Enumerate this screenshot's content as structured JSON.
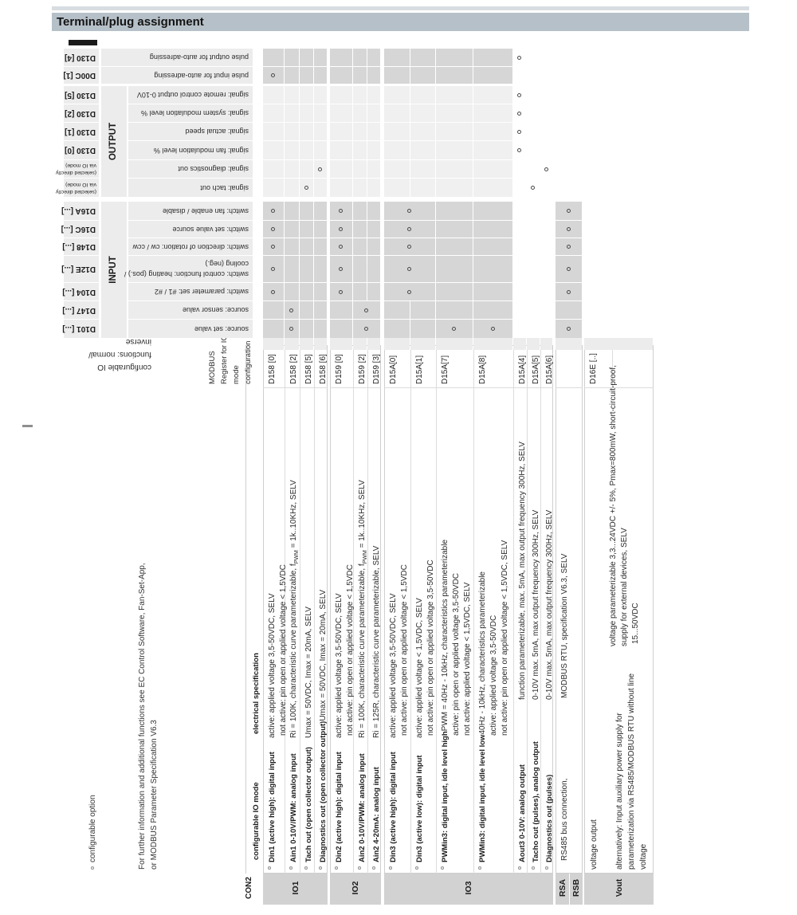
{
  "title": "Terminal/plug assignment",
  "footnotes": {
    "circle_note": "configurable  option",
    "info_line1": "For further information and additional functions see EC Control Software, Fan-Set-App,",
    "info_line2": "or MODBUS Parameter Specification V6.3"
  },
  "connector": "CON2",
  "headers": {
    "io_mode": "configurable IO mode",
    "spec": "electrical specification",
    "modbus_register_lines": [
      "MODBUS",
      "Register for IO",
      "mode",
      "configuration"
    ],
    "functions_lines": [
      "configurable IO",
      "functions: normal/",
      "inverse"
    ],
    "input": "INPUT",
    "output": "OUTPUT"
  },
  "groups": [
    {
      "label": "IO1",
      "first_row": 0,
      "last_row": 3
    },
    {
      "label": "IO2",
      "first_row": 4,
      "last_row": 6
    },
    {
      "label": "IO3",
      "first_row": 7,
      "last_row": 13
    },
    {
      "label": "RSA",
      "first_row": 14,
      "last_row": 14
    },
    {
      "label": "RSB",
      "first_row": 14,
      "last_row": 14
    },
    {
      "label": "Vout",
      "first_row": 15,
      "last_row": 15
    }
  ],
  "rows": [
    {
      "label": "Din1 (active high): digital input",
      "option": true,
      "bold": true,
      "register": "D158 [0]",
      "spec": [
        "active: applied voltage 3,5-50VDC, SELV",
        "not active: pin open or applied voltage < 1,5VDC"
      ]
    },
    {
      "label": "Ain1 0-10V/PWM: analog input",
      "option": true,
      "bold": true,
      "register": "D158 [2]",
      "spec": [
        "Ri = 100K, characteristic curve parameterizable, fPWM = 1k..10KHz, SELV"
      ]
    },
    {
      "label": "Tach out (open collector output)",
      "option": true,
      "bold": true,
      "register": "D158 [5]",
      "spec": [
        "Umax = 50VDC, Imax = 20mA, SELV"
      ]
    },
    {
      "label": "Diagnostics out (open collector output)",
      "option": true,
      "bold": true,
      "register": "D158 [6]",
      "spec": [
        "Umax = 50VDC, Imax = 20mA, SELV"
      ]
    },
    {
      "label": "Din2 (active high): digital input",
      "option": true,
      "bold": true,
      "register": "D159 [0]",
      "spec": [
        "active: applied voltage 3,5-50VDC, SELV",
        "not active: pin open or applied voltage < 1,5VDC"
      ]
    },
    {
      "label": "Ain2 0-10V/PWM: analog input",
      "option": true,
      "bold": true,
      "register": "D159 [2]",
      "spec": [
        "Ri = 100K, characteristic curve parameterizable, fPWM = 1k..10KHz, SELV"
      ]
    },
    {
      "label": "Ain2 4-20mA: analog input",
      "option": true,
      "bold": true,
      "register": "D159 [3]",
      "spec": [
        "Ri = 125R, characteristic curve parameterizable, SELV"
      ]
    },
    {
      "label": "Din3 (active high): digital input",
      "option": true,
      "bold": true,
      "register": "D15A[0]",
      "spec": [
        "active: applied voltage 3,5-50VDC, SELV",
        "not active: pin open or applied voltage < 1,5VDC"
      ]
    },
    {
      "label": "Din3 (active low): digital input",
      "option": true,
      "bold": true,
      "register": "D15A[1]",
      "spec": [
        "active: applied voltage < 1,5VDC, SELV",
        "not active: pin open or applied voltage 3,5-50VDC"
      ]
    },
    {
      "label": "PWMin3: digital input, idle level high",
      "option": true,
      "bold": true,
      "register": "D15A[7]",
      "spec": [
        "PWM = 40Hz - 10kHz, characteristics parameterizable",
        "active: pin open or applied voltage 3,5-50VDC",
        "not active: applied voltage < 1,5VDC, SELV"
      ]
    },
    {
      "label": "PWMin3: digital input, idle level low",
      "option": true,
      "bold": true,
      "register": "D15A[8]",
      "spec": [
        "40Hz - 10kHz, characteristics parameterizable",
        "active: applied voltage 3,5-50VDC",
        "not active: pin open or applied voltage < 1,5VDC, SELV"
      ]
    },
    {
      "label": "Aout3 0-10V: analog output",
      "option": true,
      "bold": true,
      "register": "D15A[4]",
      "spec": [
        "function parameterizable, max. 5mA, max output frequency 300Hz, SELV"
      ]
    },
    {
      "label": "Tacho out (pulses), analog output",
      "option": true,
      "bold": true,
      "register": "D15A[5]",
      "spec": [
        "0-10V max. 5mA, max output frequency 300Hz, SELV"
      ]
    },
    {
      "label": "Diagnostics out (pulses)",
      "option": true,
      "bold": true,
      "register": "D15A[6]",
      "spec": [
        "0-10V max. 5mA, max output frequency 300Hz, SELV"
      ]
    },
    {
      "label": "RS485 bus connection,",
      "option": false,
      "bold": false,
      "register": "",
      "spec": [
        "MODBUS RTU, specification V6.3, SELV"
      ]
    }
  ],
  "vout_block": {
    "register": "D16E [..]",
    "row1_label": "voltage output",
    "row1_spec": [
      "voltage parameterizable 3,3...24VDC +/- 5%, Pmax=800mW, short-circuit-proof,",
      "supply for external devices, SELV"
    ],
    "row2_label_lines": [
      "alternatively: Input auxiliary power supply for",
      "parameterization via RS485/MODBUS RTU without line",
      "voltage"
    ],
    "row2_spec": "15...50VDC"
  },
  "function_columns": [
    {
      "id": "source-set-value",
      "register": "D101 [...]",
      "desc": [
        "source: set value"
      ],
      "shade": "input",
      "circles": [
        1,
        "m5-6",
        9,
        10,
        14
      ],
      "merge": [
        5,
        6
      ]
    },
    {
      "id": "source-sensor-value",
      "register": "D147 [...]",
      "desc": [
        "source: sensor value"
      ],
      "shade": "input",
      "circles": [
        1,
        "m5-6"
      ],
      "merge": [
        5,
        6
      ]
    },
    {
      "id": "switch-parameter-set",
      "register": "D104 [...]",
      "desc": [
        "switch: parameter set: #1 / #2"
      ],
      "shade": "input",
      "circles": [
        0,
        4,
        "m7-8",
        14
      ],
      "merge": [
        7,
        8
      ]
    },
    {
      "id": "switch-control-function",
      "register": "D12E [...]",
      "desc": [
        "switch: control function: heating (pos.) /",
        "cooling (neg.)"
      ],
      "shade": "input",
      "circles": [
        0,
        4,
        "m7-8",
        14
      ],
      "merge": [
        7,
        8
      ]
    },
    {
      "id": "switch-direction-of-rotation",
      "register": "D148 [...]",
      "desc": [
        "switch: direction of rotation: cw / ccw"
      ],
      "shade": "input",
      "circles": [
        0,
        4,
        "m7-8",
        14
      ],
      "merge": [
        7,
        8
      ]
    },
    {
      "id": "switch-set-value-source",
      "register": "D16C [...]",
      "desc": [
        "switch: set value source"
      ],
      "shade": "input",
      "circles": [
        0,
        4,
        "m7-8",
        14
      ],
      "merge": [
        7,
        8
      ]
    },
    {
      "id": "switch-fan-enable",
      "register": "D16A [...]",
      "desc": [
        "switch: fan enable / disable"
      ],
      "shade": "input",
      "circles": [
        0,
        4,
        "m7-8",
        14
      ],
      "merge": [
        7,
        8
      ]
    },
    {
      "id": "signal-tach-out",
      "register_lines": [
        "(selected directly",
        "via IO mode)"
      ],
      "desc": [
        "signal: tach out"
      ],
      "shade": "output",
      "circles": [
        2,
        12
      ]
    },
    {
      "id": "signal-diagnostics-out",
      "register_lines": [
        "(selected directly",
        "via IO mode)"
      ],
      "desc": [
        "signal: diagnostics out"
      ],
      "shade": "output",
      "circles": [
        3,
        13
      ]
    },
    {
      "id": "signal-fan-modulation",
      "register": "D130 [0]",
      "desc": [
        "signal: fan modulation level %"
      ],
      "shade": "output",
      "circles": [
        11
      ]
    },
    {
      "id": "signal-actual-speed",
      "register": "D130 [1]",
      "desc": [
        "signal: actual speed"
      ],
      "shade": "output",
      "circles": [
        11
      ]
    },
    {
      "id": "signal-system-modulation",
      "register": "D130 [2]",
      "desc": [
        "signal: system modulation level %"
      ],
      "shade": "output",
      "circles": [
        11
      ]
    },
    {
      "id": "signal-remote-control-output",
      "register": "D130 [5]",
      "desc": [
        "signal: remote control output 0-10V"
      ],
      "shade": "output",
      "circles": [
        11
      ]
    },
    {
      "id": "pulse-input-auto-adressing",
      "register": "D00C [1]",
      "desc": [
        "pulse input for auto-adressing"
      ],
      "shade": "pulse",
      "circles": [
        0
      ]
    },
    {
      "id": "pulse-output-auto-adressing",
      "register": "D130 [4]",
      "desc": [
        "pulse output for auto-adressing"
      ],
      "shade": "pulse",
      "circles": [
        11
      ]
    }
  ],
  "colors": {
    "title_bar": "#b6c0c8",
    "cell_dark": "#d6d6d6",
    "cell_light": "#f0f0f0",
    "cell_white": "#ffffff",
    "cell_header": "#ececec",
    "group_box": "#d2d2d2",
    "border": "#cfcfcf"
  }
}
